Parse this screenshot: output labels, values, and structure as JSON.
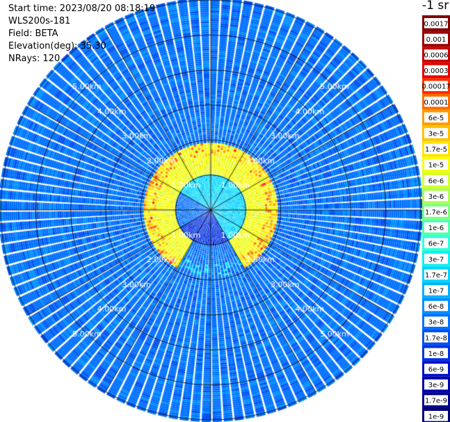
{
  "header": {
    "start_time": "Start time: 2023/08/20 08:18:19",
    "device": "WLS200s-181",
    "field": "Field: BETA",
    "elevation": "Elevation(deg): 35.30",
    "nrays": "NRays: 120"
  },
  "colorbar": {
    "unit_label": "-1 sr",
    "ticks": [
      "0.0017",
      "0.001",
      "0.0006",
      "0.0003",
      "0.00017",
      "0.0001",
      "6e-5",
      "3e-5",
      "1.7e-5",
      "1e-5",
      "6e-6",
      "3e-6",
      "1.7e-6",
      "1e-6",
      "6e-7",
      "3e-7",
      "1.7e-7",
      "1e-7",
      "6e-8",
      "3e-8",
      "1.7e-8",
      "1e-8",
      "6e-9",
      "3e-9",
      "1.7e-9",
      "1e-9"
    ],
    "colors": [
      "#800000",
      "#9a0000",
      "#c40000",
      "#e60000",
      "#ff3000",
      "#ff6a00",
      "#ff9a00",
      "#ffc000",
      "#ffe400",
      "#f4ff10",
      "#d4ff30",
      "#b0ff50",
      "#80ff80",
      "#50ffb0",
      "#30ffd8",
      "#10f0f0",
      "#00d4ff",
      "#00b0ff",
      "#0090ff",
      "#0070ff",
      "#0050f0",
      "#0030e0",
      "#0010c8",
      "#0000a8",
      "#000090",
      "#000070"
    ]
  },
  "chart_data": {
    "type": "heatmap",
    "projection": "polar-ppi",
    "field": "BETA",
    "rays": 120,
    "range_unit": "km",
    "range_rings_km": [
      1.0,
      2.0,
      3.0,
      4.0,
      5.0,
      6.0
    ],
    "ring_labels": [
      "1.00km",
      "2.00km",
      "3.00km",
      "4.00km",
      "5.00km"
    ],
    "max_range_km": 6.0,
    "azimuth_lines_deg": [
      0,
      30,
      60,
      90,
      120,
      150,
      180,
      210,
      240,
      270,
      300,
      330
    ],
    "ring_label_azimuths_deg": [
      45,
      135,
      225,
      315
    ],
    "background_level": "3e-8",
    "features": [
      {
        "range_km": [
          0.0,
          1.0
        ],
        "level": "1.7e-7",
        "sector_deg": [
          -60,
          150
        ]
      },
      {
        "range_km": [
          0.0,
          1.0
        ],
        "level": "1e-8",
        "sector_deg": [
          150,
          240
        ]
      },
      {
        "range_km": [
          1.0,
          1.9
        ],
        "level": "1e-5",
        "sector_deg": [
          -150,
          150
        ]
      },
      {
        "range_km": [
          1.9,
          6.0
        ],
        "level": "3e-8",
        "sector_deg": [
          0,
          360
        ]
      }
    ]
  }
}
